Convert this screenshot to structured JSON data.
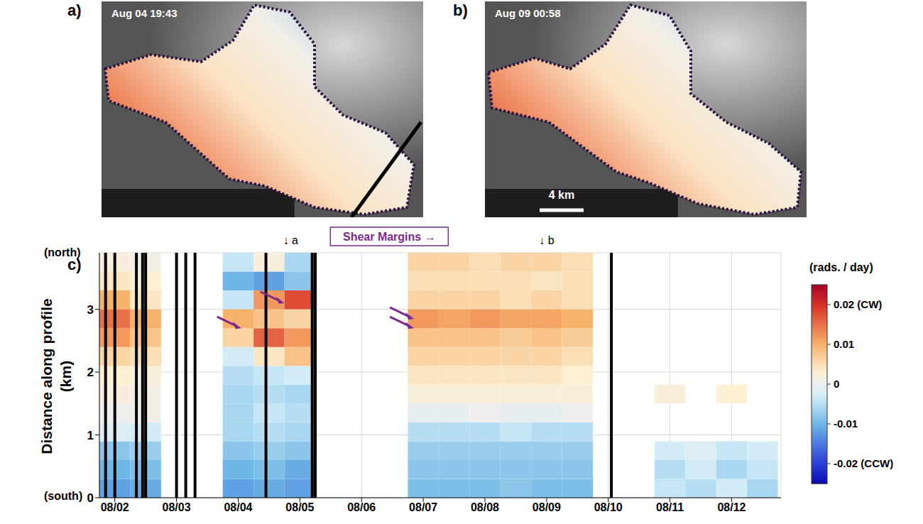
{
  "images": [
    {
      "letter": "a)",
      "timestamp": "Aug 04 19:43"
    },
    {
      "letter": "b)",
      "timestamp": "Aug 09 00:58",
      "scale_bar": "4 km"
    }
  ],
  "chart_data": {
    "type": "heatmap",
    "letter": "c)",
    "y_label": "Distance along profile (km)",
    "y_top_label": "(north)",
    "y_bottom_label": "(south)",
    "xlim": [
      1.75,
      12.8
    ],
    "xticks": [
      {
        "value": 2,
        "label": "08/02"
      },
      {
        "value": 3,
        "label": "08/03"
      },
      {
        "value": 4,
        "label": "08/04"
      },
      {
        "value": 5,
        "label": "08/05"
      },
      {
        "value": 6,
        "label": "08/06"
      },
      {
        "value": 7,
        "label": "08/07"
      },
      {
        "value": 8,
        "label": "08/08"
      },
      {
        "value": 9,
        "label": "08/09"
      },
      {
        "value": 10,
        "label": "08/10"
      },
      {
        "value": 11,
        "label": "08/11"
      },
      {
        "value": 12,
        "label": "08/12"
      }
    ],
    "ylim": [
      0,
      3.9
    ],
    "yticks": [
      0,
      1,
      2,
      3
    ],
    "grid": true,
    "heatmap": {
      "x_edges": [
        1.75,
        2.25,
        2.75,
        3.25,
        3.75,
        4.25,
        4.75,
        5.25,
        5.75,
        6.25,
        6.75,
        7.25,
        7.75,
        8.25,
        8.75,
        9.25,
        9.75,
        10.25,
        10.75,
        11.25,
        11.75,
        12.25,
        12.75
      ],
      "y_edges": [
        0,
        0.3,
        0.6,
        0.9,
        1.2,
        1.5,
        1.8,
        2.1,
        2.4,
        2.7,
        3.0,
        3.3,
        3.6,
        3.9
      ],
      "values": [
        [
          -0.012,
          -0.011,
          null,
          null,
          -0.012,
          -0.011,
          -0.012,
          null,
          null,
          null,
          -0.009,
          -0.009,
          -0.009,
          -0.008,
          -0.009,
          -0.009,
          null,
          null,
          -0.004,
          -0.005,
          -0.003,
          -0.006
        ],
        [
          -0.01,
          -0.009,
          null,
          null,
          -0.01,
          -0.009,
          -0.011,
          null,
          null,
          null,
          -0.008,
          -0.008,
          -0.008,
          -0.008,
          -0.008,
          -0.008,
          null,
          null,
          -0.005,
          -0.003,
          -0.006,
          -0.004
        ],
        [
          -0.008,
          -0.007,
          null,
          null,
          -0.008,
          -0.007,
          -0.008,
          null,
          null,
          null,
          -0.007,
          -0.007,
          -0.007,
          -0.007,
          -0.007,
          -0.007,
          null,
          null,
          -0.003,
          -0.002,
          -0.004,
          -0.003
        ],
        [
          -0.002,
          -0.003,
          null,
          null,
          -0.006,
          -0.005,
          -0.006,
          null,
          null,
          null,
          -0.005,
          -0.005,
          -0.005,
          -0.004,
          -0.005,
          -0.005,
          null,
          null,
          null,
          null,
          null,
          null
        ],
        [
          0.0,
          0.001,
          null,
          null,
          -0.006,
          -0.004,
          -0.005,
          null,
          null,
          null,
          -0.001,
          -0.001,
          0.0,
          -0.001,
          -0.001,
          0.0,
          null,
          null,
          null,
          null,
          null,
          null
        ],
        [
          0.002,
          0.001,
          null,
          null,
          -0.006,
          -0.005,
          -0.006,
          null,
          null,
          null,
          0.002,
          0.002,
          0.002,
          0.002,
          0.002,
          0.002,
          null,
          null,
          0.002,
          null,
          0.003,
          null
        ],
        [
          0.003,
          0.002,
          null,
          null,
          -0.005,
          -0.004,
          -0.003,
          null,
          null,
          null,
          0.004,
          0.004,
          0.004,
          0.004,
          0.004,
          0.003,
          null,
          null,
          null,
          null,
          null,
          null
        ],
        [
          0.006,
          0.005,
          null,
          null,
          -0.003,
          0.004,
          0.008,
          null,
          null,
          null,
          0.006,
          0.006,
          0.006,
          0.006,
          0.006,
          0.005,
          null,
          null,
          null,
          null,
          null,
          null
        ],
        [
          0.012,
          0.008,
          null,
          null,
          0.006,
          0.016,
          0.012,
          null,
          null,
          null,
          0.008,
          0.008,
          0.008,
          0.007,
          0.008,
          0.007,
          null,
          null,
          null,
          null,
          null,
          null
        ],
        [
          0.015,
          0.01,
          null,
          null,
          0.01,
          0.008,
          0.006,
          null,
          null,
          null,
          0.012,
          0.011,
          0.012,
          0.011,
          0.011,
          0.01,
          null,
          null,
          null,
          null,
          null,
          null
        ],
        [
          0.01,
          0.004,
          null,
          null,
          -0.004,
          0.012,
          0.018,
          null,
          null,
          null,
          0.006,
          0.006,
          0.006,
          0.005,
          0.006,
          0.005,
          null,
          null,
          null,
          null,
          null,
          null
        ],
        [
          0.004,
          0.003,
          null,
          null,
          -0.01,
          -0.012,
          -0.008,
          null,
          null,
          null,
          0.005,
          0.005,
          0.005,
          0.005,
          0.004,
          0.005,
          null,
          null,
          null,
          null,
          null,
          null
        ],
        [
          0.002,
          0.001,
          null,
          null,
          -0.004,
          0.002,
          -0.006,
          null,
          null,
          null,
          0.006,
          0.006,
          0.005,
          0.006,
          0.006,
          0.005,
          null,
          null,
          null,
          null,
          null,
          null
        ]
      ]
    },
    "colorbar": {
      "title": "(rads. / day)",
      "lim": [
        -0.025,
        0.025
      ],
      "ticks": [
        {
          "value": 0.02,
          "label": "0.02 (CW)"
        },
        0.01,
        0,
        -0.01,
        {
          "value": -0.02,
          "label": "-0.02 (CCW)"
        }
      ]
    },
    "black_lines": [
      1.85,
      2.0,
      2.35,
      2.45,
      2.5,
      3.0,
      3.15,
      3.3,
      4.45,
      5.2,
      5.25,
      10.05
    ],
    "arrows": [
      {
        "x": 4.05,
        "y": 2.7
      },
      {
        "x": 4.75,
        "y": 3.1
      },
      {
        "x": 6.85,
        "y": 2.85
      },
      {
        "x": 6.85,
        "y": 2.7
      }
    ],
    "annotations": [
      {
        "text": "↓ a",
        "x": 4.85
      },
      {
        "text": "Shear Margins →",
        "x": 6.45,
        "boxed": true
      },
      {
        "text": "↓ b",
        "x": 9.0
      }
    ]
  }
}
